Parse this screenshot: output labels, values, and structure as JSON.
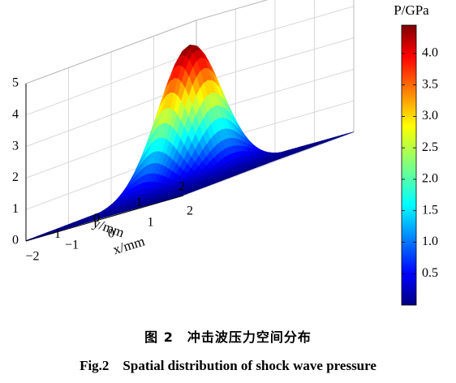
{
  "chart_data": {
    "type": "surface3d",
    "title": "",
    "xlabel": "x/mm",
    "ylabel": "y/mm",
    "zlabel": "P/GPa",
    "xlim": [
      -2,
      2
    ],
    "ylim": [
      -2,
      2
    ],
    "zlim": [
      0,
      5
    ],
    "x_ticks": [
      "−2",
      "−1",
      "0",
      "1",
      "2"
    ],
    "y_ticks": [
      "−1",
      "0",
      "1",
      "2"
    ],
    "z_ticks": [
      "0",
      "1",
      "2",
      "3",
      "4",
      "5"
    ],
    "peak_pressure": 4.45,
    "grid": true,
    "colormap": "jet",
    "colorbar": {
      "label": "P/GPa",
      "ticks": [
        "0.5",
        "1.0",
        "1.5",
        "2.0",
        "2.5",
        "3.0",
        "3.5",
        "4.0"
      ],
      "min": 0,
      "max": 4.45
    }
  },
  "caption": {
    "cn": "图 2　冲击波压力空间分布",
    "en": "Fig.2　Spatial distribution of shock wave pressure"
  }
}
